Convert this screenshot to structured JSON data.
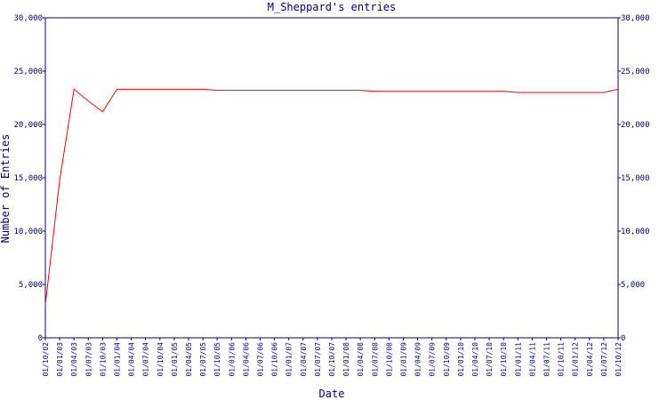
{
  "chart_data": {
    "type": "line",
    "title": "M_Sheppard's entries",
    "x_label": "Date",
    "y_label": "Number of Entries",
    "categories": [
      "01/10/02",
      "01/01/03",
      "01/04/03",
      "01/07/03",
      "01/10/03",
      "01/01/04",
      "01/04/04",
      "01/07/04",
      "01/10/04",
      "01/01/05",
      "01/04/05",
      "01/07/05",
      "01/10/05",
      "01/01/06",
      "01/04/06",
      "01/07/06",
      "01/10/06",
      "01/01/07",
      "01/04/07",
      "01/07/07",
      "01/10/07",
      "01/01/08",
      "01/04/08",
      "01/07/08",
      "01/10/08",
      "01/01/09",
      "01/04/09",
      "01/07/09",
      "01/10/09",
      "01/01/10",
      "01/04/10",
      "01/07/10",
      "01/10/10",
      "01/01/11",
      "01/04/11",
      "01/07/11",
      "01/10/11",
      "01/01/12",
      "01/04/12",
      "01/07/12",
      "01/10/12"
    ],
    "series": [
      {
        "name": "M_Sheppard",
        "color": "#ff0000",
        "values": [
          3100,
          14800,
          23300,
          22200,
          21200,
          23300,
          23300,
          23300,
          23300,
          23300,
          23300,
          23300,
          23200,
          23200,
          23200,
          23200,
          23200,
          23200,
          23200,
          23200,
          23200,
          23200,
          23200,
          23100,
          23100,
          23100,
          23100,
          23100,
          23100,
          23100,
          23100,
          23100,
          23100,
          23000,
          23000,
          23000,
          23000,
          23000,
          23000,
          23000,
          23300
        ]
      }
    ],
    "ylim": [
      0,
      30000
    ],
    "yticks": [
      0,
      {
        "value": 5000,
        "label": "5,000"
      },
      {
        "value": 10000,
        "label": "10,000"
      },
      {
        "value": 15000,
        "label": "15,000"
      },
      {
        "value": 20000,
        "label": "20,000"
      },
      {
        "value": 25000,
        "label": "25,000"
      },
      {
        "value": 30000,
        "label": "30,000"
      }
    ]
  }
}
